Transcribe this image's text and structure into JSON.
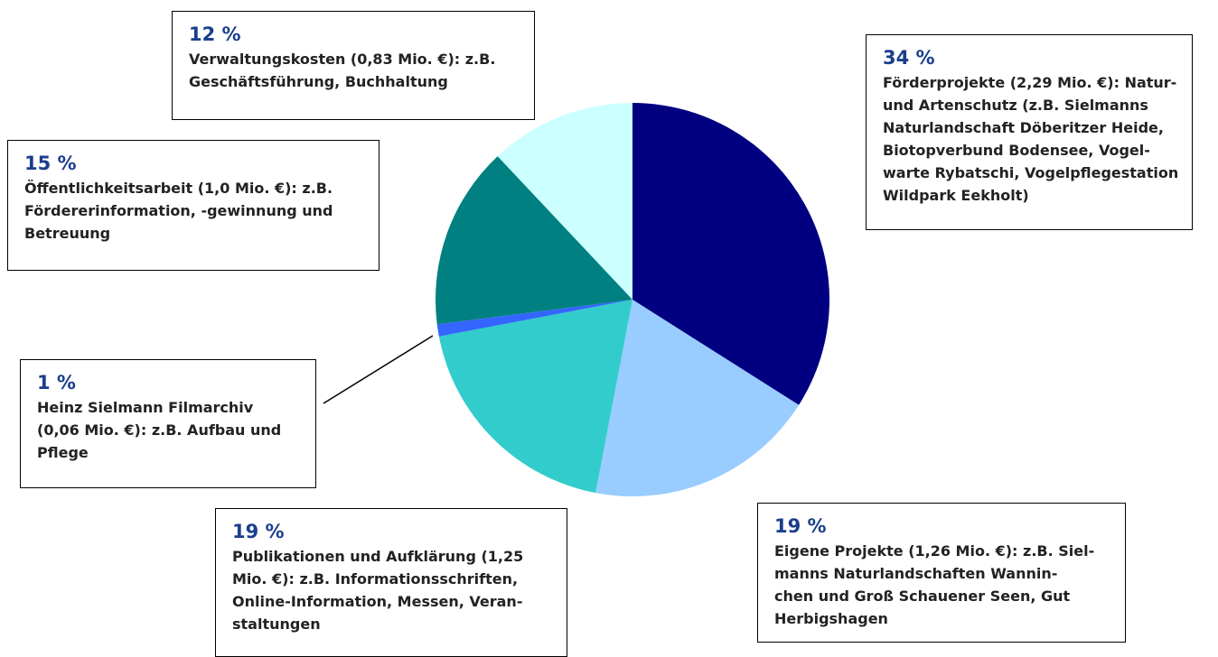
{
  "chart_data": {
    "type": "pie",
    "values": [
      34,
      19,
      19,
      1,
      15,
      12
    ],
    "value_labels": [
      "34 %",
      "19 %",
      "19 %",
      "1 %",
      "15 %",
      "12 %"
    ],
    "descriptions": [
      [
        "Förderprojekte (2,29 Mio. €): Natur-",
        "und Artenschutz (z.B. Sielmanns",
        "Naturlandschaft Döberitzer Heide,",
        "Biotopverbund Bodensee, Vogel-",
        "warte Rybatschi, Vogelpflegestation",
        "Wildpark Eekholt)"
      ],
      [
        "Eigene Projekte (1,26 Mio. €): z.B. Siel-",
        "manns Naturlandschaften Wannin-",
        "chen und Groß Schauener Seen, Gut",
        "Herbigshagen"
      ],
      [
        "Publikationen und Aufklärung (1,25",
        "Mio. €): z.B. Informationsschriften,",
        "Online-Information, Messen, Veran-",
        "staltungen"
      ],
      [
        "Heinz Sielmann Filmarchiv",
        "(0,06 Mio. €): z.B. Aufbau und",
        "Pflege"
      ],
      [
        "Öffentlichkeitsarbeit (1,0 Mio. €): z.B.",
        "Fördererinformation, -gewinnung und",
        "Betreuung"
      ],
      [
        "Verwaltungskosten (0,83 Mio. €): z.B.",
        "Geschäftsführung, Buchhaltung"
      ]
    ],
    "colors": [
      "#000080",
      "#99ccff",
      "#33cccc",
      "#3366ff",
      "#008080",
      "#ccffff"
    ]
  }
}
